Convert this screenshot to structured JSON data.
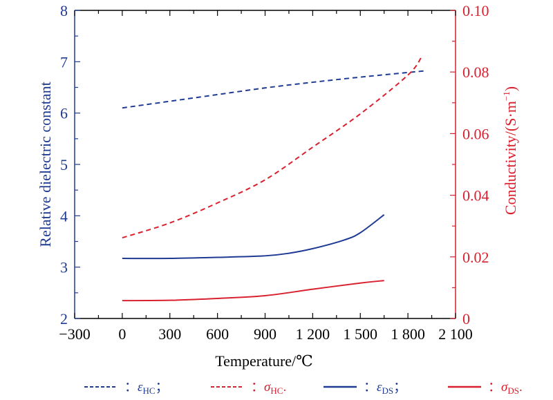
{
  "chart_data": {
    "type": "line",
    "xlabel": "Temperature/℃",
    "ylabel_left": "Relative dielectric constant",
    "ylabel_right": "Conductivity/(S·m",
    "ylabel_right_sup": "−1",
    "ylabel_right_close": ")",
    "xlim": [
      -300,
      2100
    ],
    "ylim_left": [
      2,
      8
    ],
    "ylim_right": [
      0,
      0.1
    ],
    "x_ticks": [
      -300,
      0,
      300,
      600,
      900,
      1200,
      1500,
      1800,
      2100
    ],
    "x_tick_labels": [
      "−300",
      "0",
      "300",
      "600",
      "900",
      "1 200",
      "1 500",
      "1 800",
      "2 100"
    ],
    "y_left_ticks": [
      "2",
      "3",
      "4",
      "5",
      "6",
      "7",
      "8"
    ],
    "y_right_ticks": [
      "0",
      "0.02",
      "0.04",
      "0.06",
      "0.08",
      "0.10"
    ],
    "grid": false,
    "legend_placement": "bottom",
    "colors": {
      "blue": "#1f3a93",
      "red": "#d9202e"
    },
    "series": [
      {
        "name": "ε",
        "sub": "HC",
        "sep": "；",
        "axis": "left",
        "style": "dashed",
        "color": "#1f3a93",
        "x": [
          0,
          300,
          600,
          900,
          1200,
          1500,
          1900
        ],
        "y": [
          6.1,
          6.23,
          6.36,
          6.49,
          6.6,
          6.7,
          6.82
        ]
      },
      {
        "name": "σ",
        "sub": "HC",
        "sep": ".",
        "axis": "right",
        "style": "dashed",
        "color": "#d9202e",
        "x": [
          0,
          300,
          600,
          900,
          1200,
          1500,
          1800,
          1885
        ],
        "y": [
          0.0262,
          0.031,
          0.0375,
          0.045,
          0.0556,
          0.0664,
          0.079,
          0.0848
        ]
      },
      {
        "name": "ε",
        "sub": "DS",
        "sep": "；",
        "axis": "left",
        "style": "solid",
        "color": "#1f3a93",
        "x": [
          0,
          300,
          600,
          900,
          1050,
          1200,
          1400,
          1500,
          1650
        ],
        "y": [
          3.17,
          3.17,
          3.19,
          3.22,
          3.27,
          3.36,
          3.53,
          3.67,
          4.02
        ]
      },
      {
        "name": "σ",
        "sub": "DS",
        "sep": ".",
        "axis": "right",
        "style": "solid",
        "color": "#d9202e",
        "x": [
          0,
          300,
          600,
          900,
          1200,
          1500,
          1650
        ],
        "y": [
          0.0058,
          0.0059,
          0.0065,
          0.0074,
          0.0095,
          0.0115,
          0.0123
        ]
      }
    ],
    "legend_colon": "："
  }
}
